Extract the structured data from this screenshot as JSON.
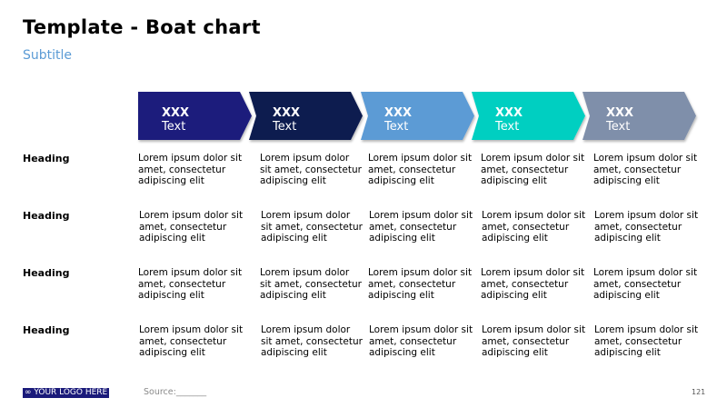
{
  "slide": {
    "title": "Template - Boat chart",
    "subtitle": "Subtitle",
    "source": "Source:_______",
    "logo": "∞ YOUR LOGO HERE",
    "page_number": "121"
  },
  "chevrons": [
    {
      "heading": "XXX",
      "text": "Text",
      "color": "#1a1f7c"
    },
    {
      "heading": "XXX",
      "text": "Text",
      "color": "#0c1a4f"
    },
    {
      "heading": "XXX",
      "text": "Text",
      "color": "#5b9bd5"
    },
    {
      "heading": "XXX",
      "text": "Text",
      "color": "#00cfc1"
    },
    {
      "heading": "XXX",
      "text": "Text",
      "color": "#7f8faa"
    }
  ],
  "rows": [
    {
      "heading": "Heading",
      "cells": [
        [
          "Lorem ipsum dolor sit",
          "amet, consectetur",
          "adipiscing elit"
        ],
        [
          "Lorem ipsum dolor",
          "sit amet, consectetur",
          "adipiscing elit"
        ],
        [
          "Lorem ipsum dolor sit",
          "amet, consectetur",
          "adipiscing elit"
        ],
        [
          "Lorem ipsum dolor sit",
          "amet, consectetur",
          "adipiscing elit"
        ],
        [
          "Lorem ipsum dolor sit",
          "amet, consectetur",
          "adipiscing elit"
        ]
      ]
    },
    {
      "heading": "Heading",
      "cells": [
        [
          "Lorem ipsum dolor sit",
          "amet, consectetur",
          "adipiscing elit"
        ],
        [
          "Lorem ipsum dolor",
          "sit amet, consectetur",
          "adipiscing elit"
        ],
        [
          "Lorem ipsum dolor sit",
          "amet, consectetur",
          "adipiscing elit"
        ],
        [
          "Lorem ipsum dolor sit",
          "amet, consectetur",
          "adipiscing elit"
        ],
        [
          "Lorem ipsum dolor sit",
          "amet, consectetur",
          "adipiscing elit"
        ]
      ]
    },
    {
      "heading": "Heading",
      "cells": [
        [
          "Lorem ipsum dolor sit",
          "amet, consectetur",
          "adipiscing elit"
        ],
        [
          "Lorem ipsum dolor",
          "sit amet, consectetur",
          "adipiscing elit"
        ],
        [
          "Lorem ipsum dolor sit",
          "amet, consectetur",
          "adipiscing elit"
        ],
        [
          "Lorem ipsum dolor sit",
          "amet, consectetur",
          "adipiscing elit"
        ],
        [
          "Lorem ipsum dolor sit",
          "amet, consectetur",
          "adipiscing elit"
        ]
      ]
    },
    {
      "heading": "Heading",
      "cells": [
        [
          "Lorem ipsum dolor sit",
          "amet, consectetur",
          "adipiscing elit"
        ],
        [
          "Lorem ipsum dolor",
          "sit amet, consectetur",
          "adipiscing elit"
        ],
        [
          "Lorem ipsum dolor sit",
          "amet, consectetur",
          "adipiscing elit"
        ],
        [
          "Lorem ipsum dolor sit",
          "amet, consectetur",
          "adipiscing elit"
        ],
        [
          "Lorem ipsum dolor sit",
          "amet, consectetur",
          "adipiscing elit"
        ]
      ]
    }
  ]
}
